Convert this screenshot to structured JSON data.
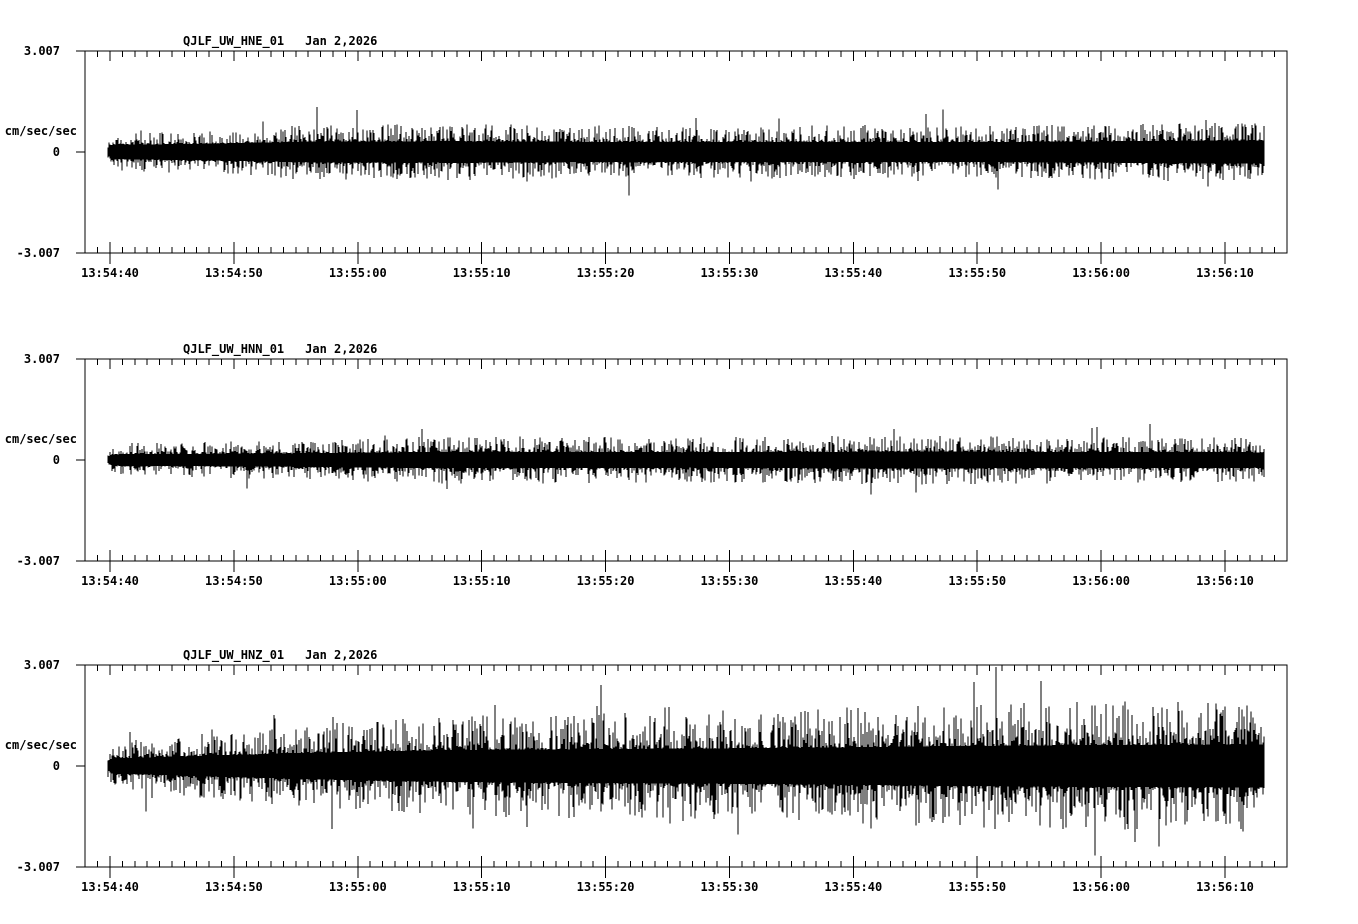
{
  "colors": {
    "background": "#ffffff",
    "trace": "#000000",
    "axis": "#000000",
    "text": "#000000"
  },
  "chart_data": {
    "type": "line",
    "subtype": "seismogram-noise",
    "grid": false,
    "legend": false,
    "y_axis": {
      "max": 3.007,
      "min": -3.007,
      "max_label": "3.007",
      "zero_label": "0",
      "min_label": "-3.007",
      "units_label": "cm/sec/sec"
    },
    "x_axis": {
      "tick_labels": [
        "13:54:40",
        "13:54:50",
        "13:55:00",
        "13:55:10",
        "13:55:20",
        "13:55:30",
        "13:55:40",
        "13:55:50",
        "13:56:00",
        "13:56:10"
      ],
      "minor_tick_interval_s": 1,
      "major_tick_interval_s": 10,
      "axis_range_s_rel_first_label": [
        -2,
        95
      ],
      "trace_range_s_rel_first_label": [
        -0.2,
        93
      ]
    },
    "panels": [
      {
        "station": "QJLF_UW_HNE_01",
        "date": "Jan 2,2026",
        "channel": "HNE",
        "noise": {
          "seed": 11,
          "band_frac": 0.38,
          "spike_prob": 0.02,
          "spike_gain": 1.7,
          "peak_abs_approx": 1.5,
          "envelope": [
            [
              0,
              0.55
            ],
            [
              0.08,
              0.65
            ],
            [
              0.18,
              0.82
            ],
            [
              0.3,
              0.85
            ],
            [
              0.45,
              0.78
            ],
            [
              0.6,
              0.8
            ],
            [
              0.75,
              0.78
            ],
            [
              0.88,
              0.85
            ],
            [
              1,
              0.92
            ]
          ]
        }
      },
      {
        "station": "QJLF_UW_HNN_01",
        "date": "Jan 2,2026",
        "channel": "HNN",
        "noise": {
          "seed": 22,
          "band_frac": 0.34,
          "spike_prob": 0.014,
          "spike_gain": 1.6,
          "peak_abs_approx": 1.2,
          "envelope": [
            [
              0,
              0.5
            ],
            [
              0.15,
              0.58
            ],
            [
              0.3,
              0.72
            ],
            [
              0.5,
              0.68
            ],
            [
              0.7,
              0.74
            ],
            [
              0.85,
              0.7
            ],
            [
              1,
              0.68
            ]
          ]
        }
      },
      {
        "station": "QJLF_UW_HNZ_01",
        "date": "Jan 2,2026",
        "channel": "HNZ",
        "noise": {
          "seed": 33,
          "band_frac": 0.32,
          "spike_prob": 0.03,
          "spike_gain": 1.75,
          "peak_abs_approx": 2.95,
          "envelope": [
            [
              0,
              0.7
            ],
            [
              0.08,
              0.95
            ],
            [
              0.18,
              1.25
            ],
            [
              0.3,
              1.5
            ],
            [
              0.45,
              1.6
            ],
            [
              0.6,
              1.7
            ],
            [
              0.72,
              1.85
            ],
            [
              0.85,
              1.95
            ],
            [
              1,
              2.0
            ]
          ]
        }
      }
    ]
  }
}
